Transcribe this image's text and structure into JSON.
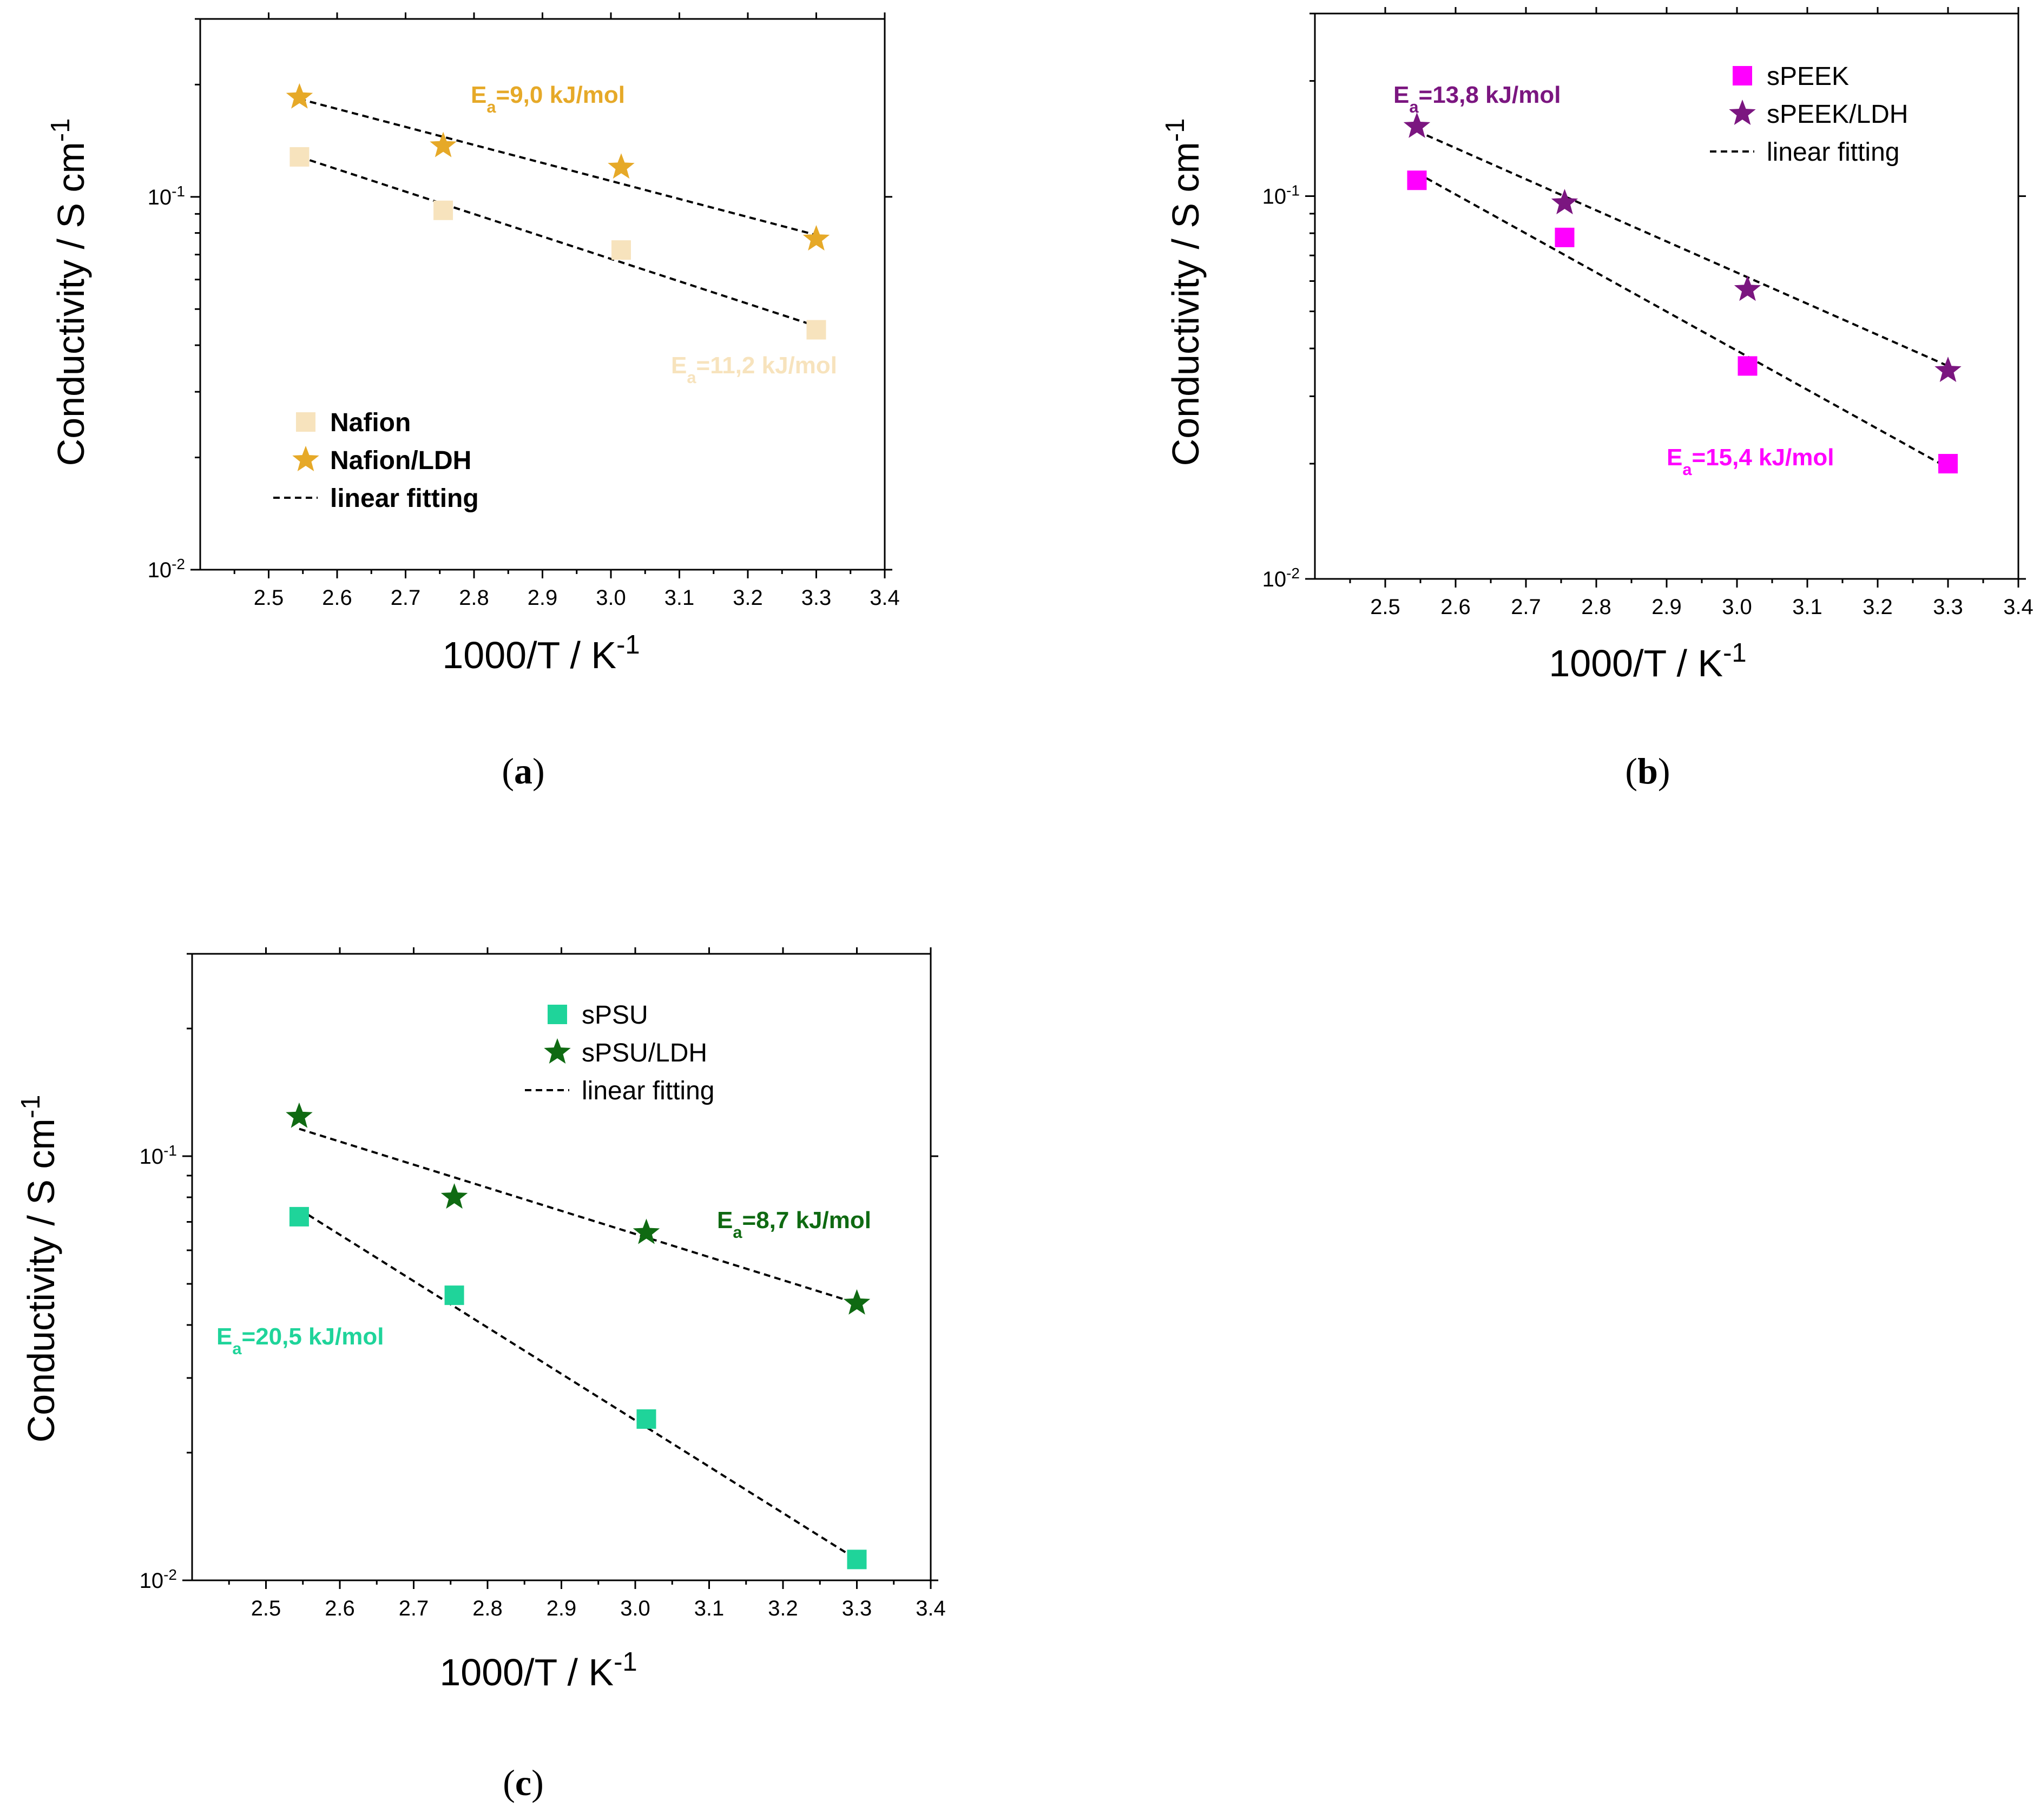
{
  "chart_data": [
    {
      "id": "a",
      "type": "scatter",
      "caption": "a",
      "xlabel_main": "1000/T / K",
      "xlabel_sup": "-1",
      "ylabel_main": "Conductivity / S cm",
      "ylabel_sup": "-1",
      "xlim": [
        2.4,
        3.4
      ],
      "ylim": [
        0.01,
        0.3
      ],
      "yscale": "log",
      "x_ticks": [
        "2.5",
        "2.6",
        "2.7",
        "2.8",
        "2.9",
        "3.0",
        "3.1",
        "3.2",
        "3.3",
        "3.4"
      ],
      "y_ticks": [
        {
          "base": "10",
          "exp": "-2",
          "value": 0.01
        },
        {
          "base": "10",
          "exp": "-1",
          "value": 0.1
        }
      ],
      "legend_bold": true,
      "legend_position": "bottom-left",
      "legend": [
        "Nafion",
        "Nafion/LDH",
        "linear fitting"
      ],
      "series": [
        {
          "name": "Nafion",
          "marker": "square",
          "color": "#f7e3bd",
          "x": [
            2.545,
            2.755,
            3.015,
            3.3
          ],
          "y": [
            0.128,
            0.092,
            0.072,
            0.044
          ],
          "fit": [
            0.128,
            0.045
          ]
        },
        {
          "name": "Nafion/LDH",
          "marker": "star",
          "color": "#e6a928",
          "x": [
            2.545,
            2.755,
            3.015,
            3.3
          ],
          "y": [
            0.185,
            0.137,
            0.12,
            0.077
          ],
          "fit": [
            0.183,
            0.079
          ]
        }
      ],
      "annotations": [
        {
          "main": "E",
          "sub": "a",
          "rest": "=9,0 kJ/mol",
          "color": "#e6a928",
          "near": "upper series, top-right"
        },
        {
          "main": "E",
          "sub": "a",
          "rest": "=11,2 kJ/mol",
          "color": "#f7e3bd",
          "near": "lower series, right"
        }
      ]
    },
    {
      "id": "b",
      "type": "scatter",
      "caption": "b",
      "xlabel_main": "1000/T / K",
      "xlabel_sup": "-1",
      "ylabel_main": "Conductivity / S cm",
      "ylabel_sup": "-1",
      "xlim": [
        2.4,
        3.4
      ],
      "ylim": [
        0.01,
        0.3
      ],
      "yscale": "log",
      "x_ticks": [
        "2.5",
        "2.6",
        "2.7",
        "2.8",
        "2.9",
        "3.0",
        "3.1",
        "3.2",
        "3.3",
        "3.4"
      ],
      "y_ticks": [
        {
          "base": "10",
          "exp": "-2",
          "value": 0.01
        },
        {
          "base": "10",
          "exp": "-1",
          "value": 0.1
        }
      ],
      "legend_bold": false,
      "legend_position": "top-right",
      "legend": [
        "sPEEK",
        "sPEEK/LDH",
        "linear fitting"
      ],
      "series": [
        {
          "name": "sPEEK",
          "marker": "square",
          "color": "#ff00ff",
          "x": [
            2.545,
            2.755,
            3.015,
            3.3
          ],
          "y": [
            0.11,
            0.078,
            0.036,
            0.02
          ],
          "fit": [
            0.115,
            0.0195
          ]
        },
        {
          "name": "sPEEK/LDH",
          "marker": "star",
          "color": "#7b1680",
          "x": [
            2.545,
            2.755,
            3.015,
            3.3
          ],
          "y": [
            0.152,
            0.096,
            0.057,
            0.035
          ],
          "fit": [
            0.148,
            0.036
          ]
        }
      ],
      "annotations": [
        {
          "main": "E",
          "sub": "a",
          "rest": "=13,8 kJ/mol",
          "color": "#7b1680",
          "near": "upper series, top-left"
        },
        {
          "main": "E",
          "sub": "a",
          "rest": "=15,4 kJ/mol",
          "color": "#ff00ff",
          "near": "lower series, bottom-right"
        }
      ]
    },
    {
      "id": "c",
      "type": "scatter",
      "caption": "c",
      "xlabel_main": "1000/T / K",
      "xlabel_sup": "-1",
      "ylabel_main": "Conductivity / S cm",
      "ylabel_sup": "-1",
      "xlim": [
        2.4,
        3.4
      ],
      "ylim": [
        0.01,
        0.3
      ],
      "yscale": "log",
      "x_ticks": [
        "2.5",
        "2.6",
        "2.7",
        "2.8",
        "2.9",
        "3.0",
        "3.1",
        "3.2",
        "3.3",
        "3.4"
      ],
      "y_ticks": [
        {
          "base": "10",
          "exp": "-2",
          "value": 0.01
        },
        {
          "base": "10",
          "exp": "-1",
          "value": 0.1
        }
      ],
      "legend_bold": false,
      "legend_position": "top-center",
      "legend": [
        "sPSU",
        "sPSU/LDH",
        "linear fitting"
      ],
      "series": [
        {
          "name": "sPSU",
          "marker": "square",
          "color": "#1fd49a",
          "x": [
            2.545,
            2.755,
            3.015,
            3.3
          ],
          "y": [
            0.072,
            0.047,
            0.024,
            0.0112
          ],
          "fit": [
            0.075,
            0.0112
          ]
        },
        {
          "name": "sPSU/LDH",
          "marker": "star",
          "color": "#0f6a12",
          "x": [
            2.545,
            2.755,
            3.015,
            3.3
          ],
          "y": [
            0.124,
            0.08,
            0.066,
            0.045
          ],
          "fit": [
            0.116,
            0.045
          ]
        }
      ],
      "annotations": [
        {
          "main": "E",
          "sub": "a",
          "rest": "=8,7 kJ/mol",
          "color": "#0f6a12",
          "near": "upper series, right"
        },
        {
          "main": "E",
          "sub": "a",
          "rest": "=20,5 kJ/mol",
          "color": "#1fd49a",
          "near": "lower series, left"
        }
      ]
    }
  ]
}
